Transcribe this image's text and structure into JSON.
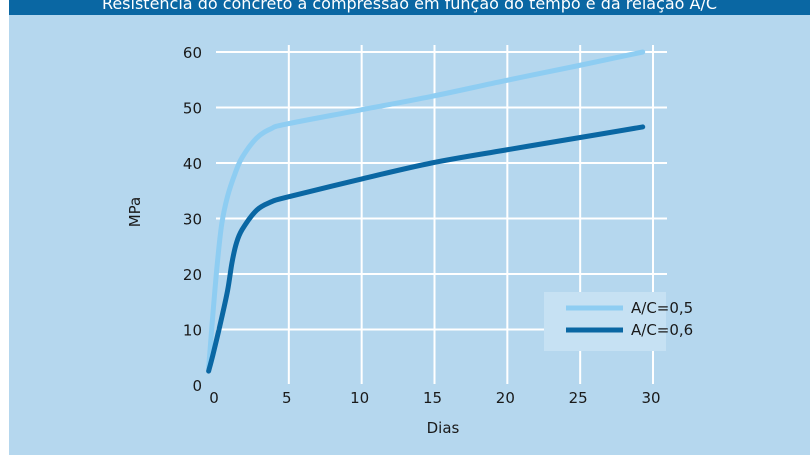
{
  "header": {
    "title": "Resistência do concreto à compressão em função do tempo e da relação A/C",
    "bar_color": "#0a67a3"
  },
  "colors": {
    "background": "#b5d7ee",
    "grid": "#ffffff",
    "text": "#1a1a1a"
  },
  "chart_data": {
    "type": "line",
    "title": "",
    "xlabel": "Dias",
    "ylabel": "MPa",
    "xlim": [
      0,
      30
    ],
    "ylim": [
      0,
      60
    ],
    "x_ticks": [
      0,
      5,
      10,
      15,
      20,
      25,
      30
    ],
    "y_ticks": [
      0,
      10,
      20,
      30,
      40,
      50,
      60
    ],
    "grid": true,
    "legend_position": "bottom-right",
    "series": [
      {
        "name": "A/C=0,5",
        "color": "#8ecdf2",
        "points": [
          [
            -0.3,
            3
          ],
          [
            0,
            13
          ],
          [
            0.3,
            22
          ],
          [
            0.6,
            29
          ],
          [
            1,
            34
          ],
          [
            1.5,
            38
          ],
          [
            2,
            41
          ],
          [
            3,
            44.5
          ],
          [
            4,
            46.2
          ],
          [
            5,
            47
          ],
          [
            10,
            49.5
          ],
          [
            15,
            52
          ],
          [
            20,
            54.8
          ],
          [
            25,
            57.5
          ],
          [
            29.5,
            60
          ]
        ]
      },
      {
        "name": "A/C=0,6",
        "color": "#0a67a3",
        "points": [
          [
            -0.3,
            2.5
          ],
          [
            0,
            5.5
          ],
          [
            0.5,
            11
          ],
          [
            1,
            17
          ],
          [
            1.3,
            22
          ],
          [
            1.6,
            25.5
          ],
          [
            2,
            28
          ],
          [
            3,
            31.5
          ],
          [
            4,
            33
          ],
          [
            5,
            33.8
          ],
          [
            10,
            37
          ],
          [
            15,
            40
          ],
          [
            20,
            42.3
          ],
          [
            25,
            44.5
          ],
          [
            29.5,
            46.5
          ]
        ]
      }
    ]
  }
}
